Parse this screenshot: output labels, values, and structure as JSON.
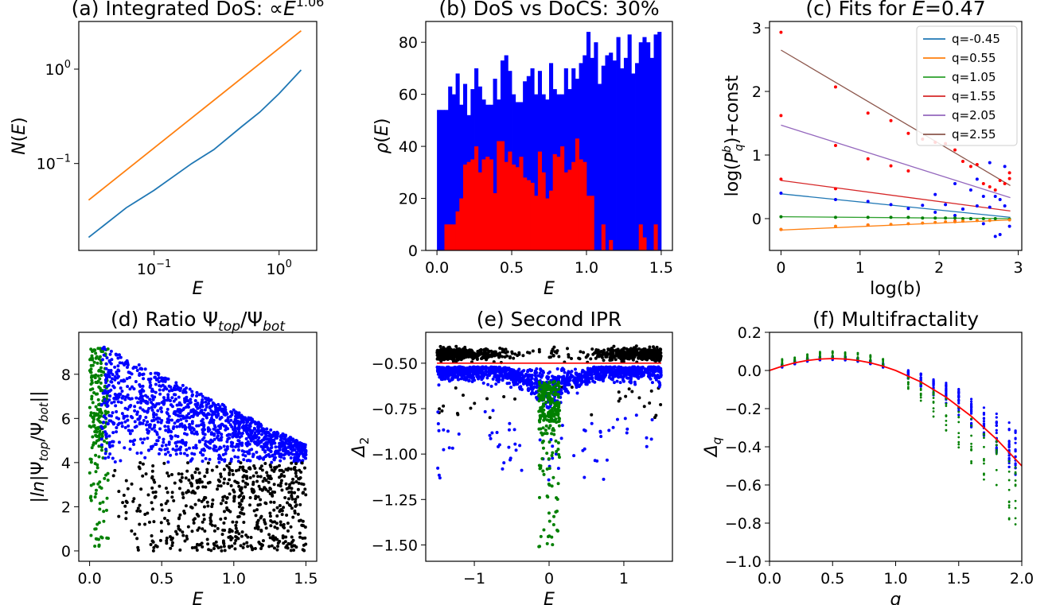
{
  "colors": {
    "blue_line": "#1f77b4",
    "orange_line": "#ff7f0e",
    "green_line": "#2ca02c",
    "red_line": "#d62728",
    "purple_line": "#9467bd",
    "brown_line": "#8c564b",
    "blue": "#0000ff",
    "red": "#ff0000",
    "green": "#008000",
    "black": "#000000",
    "legend_border": "#cccccc"
  },
  "chart_data": [
    {
      "id": "a",
      "type": "line",
      "title": "(a) Integrated DoS:",
      "title_extra": {
        "prefix": "∝",
        "base": "E",
        "exponent": "1.06"
      },
      "xlabel": "E",
      "ylabel": "N(E)",
      "xscale": "log",
      "yscale": "log",
      "xlim": [
        0.025,
        2.0
      ],
      "ylim": [
        0.012,
        3.2
      ],
      "xticks": [
        {
          "v": 0.1,
          "b": "10",
          "e": "−1"
        },
        {
          "v": 1,
          "b": "10",
          "e": "0"
        }
      ],
      "yticks": [
        {
          "v": 0.1,
          "b": "10",
          "e": "−1"
        },
        {
          "v": 1,
          "b": "10",
          "e": "0"
        }
      ],
      "series": [
        {
          "color": "orange_line",
          "x": [
            0.03,
            1.5
          ],
          "y": [
            0.041,
            2.55
          ]
        },
        {
          "color": "blue_line",
          "x": [
            0.03,
            0.06,
            0.1,
            0.2,
            0.3,
            0.5,
            0.7,
            1.0,
            1.5
          ],
          "y": [
            0.0165,
            0.034,
            0.052,
            0.1,
            0.14,
            0.245,
            0.35,
            0.55,
            0.98
          ]
        }
      ]
    },
    {
      "id": "b",
      "type": "bar",
      "title": "(b) DoS vs DoCS: 30%",
      "xlabel": "E",
      "ylabel": "ρ(E)",
      "xlim": [
        -0.075,
        1.575
      ],
      "ylim": [
        0,
        88
      ],
      "xticks": [
        {
          "v": 0,
          "l": "0.0"
        },
        {
          "v": 0.5,
          "l": "0.5"
        },
        {
          "v": 1,
          "l": "1.0"
        },
        {
          "v": 1.5,
          "l": "1.5"
        }
      ],
      "yticks": [
        {
          "v": 0,
          "l": "0"
        },
        {
          "v": 20,
          "l": "20"
        },
        {
          "v": 40,
          "l": "40"
        },
        {
          "v": 60,
          "l": "60"
        },
        {
          "v": 80,
          "l": "80"
        }
      ],
      "bin_start": 0,
      "bin_width": 0.025,
      "series": [
        {
          "color": "blue",
          "values": [
            54,
            54,
            54,
            63,
            60,
            68,
            56,
            64,
            52,
            62,
            70,
            63,
            58,
            56,
            56,
            66,
            58,
            73,
            75,
            69,
            60,
            57,
            57,
            65,
            67,
            70,
            60,
            69,
            60,
            58,
            72,
            62,
            60,
            60,
            70,
            62,
            70,
            66,
            72,
            75,
            84,
            74,
            80,
            64,
            71,
            75,
            76,
            73,
            82,
            70,
            74,
            83,
            68,
            72,
            80,
            82,
            80,
            74,
            83,
            84
          ]
        },
        {
          "color": "red",
          "values": [
            0,
            0,
            10,
            10,
            10,
            15,
            20,
            33,
            34,
            35,
            40,
            30,
            35,
            36,
            35,
            22,
            42,
            42,
            34,
            38,
            33,
            32,
            36,
            28,
            27,
            26,
            21,
            38,
            30,
            20,
            23,
            37,
            36,
            40,
            30,
            31,
            34,
            43,
            35,
            34,
            21,
            21,
            0,
            0,
            10,
            0,
            4,
            0,
            0,
            0,
            0,
            0,
            0,
            0,
            10,
            5,
            0,
            0,
            10,
            0
          ]
        }
      ]
    },
    {
      "id": "c",
      "type": "scatter",
      "title": "(c) Fits for",
      "title_extra": {
        "var": "E",
        "rest": "=0.47"
      },
      "xlabel": "log(b)",
      "ylabel": "log(P_q^b)+const",
      "xlim": [
        -0.145,
        3.045
      ],
      "ylim": [
        -0.5,
        3.1
      ],
      "xticks": [
        {
          "v": 0,
          "l": "0"
        },
        {
          "v": 1,
          "l": "1"
        },
        {
          "v": 2,
          "l": "2"
        },
        {
          "v": 3,
          "l": "3"
        }
      ],
      "yticks": [
        {
          "v": 0,
          "l": "0"
        },
        {
          "v": 1,
          "l": "1"
        },
        {
          "v": 2,
          "l": "2"
        },
        {
          "v": 3,
          "l": "3"
        }
      ],
      "legend_position": "top-right",
      "fits": [
        {
          "name": "q=-0.45",
          "color": "blue_line",
          "x": [
            0,
            2.9
          ],
          "y": [
            0.39,
            0.02
          ]
        },
        {
          "name": "q=0.55",
          "color": "orange_line",
          "x": [
            0,
            2.9
          ],
          "y": [
            -0.18,
            -0.02
          ]
        },
        {
          "name": "q=1.05",
          "color": "green_line",
          "x": [
            0,
            2.9
          ],
          "y": [
            0.03,
            0.0
          ]
        },
        {
          "name": "q=1.55",
          "color": "red_line",
          "x": [
            0,
            2.9
          ],
          "y": [
            0.6,
            0.12
          ]
        },
        {
          "name": "q=2.05",
          "color": "purple_line",
          "x": [
            0,
            2.9
          ],
          "y": [
            1.47,
            0.33
          ]
        },
        {
          "name": "q=2.55",
          "color": "brown_line",
          "x": [
            0,
            2.9
          ],
          "y": [
            2.65,
            0.52
          ]
        }
      ],
      "points": {
        "red": [
          [
            0,
            2.93
          ],
          [
            0,
            1.62
          ],
          [
            0,
            0.62
          ],
          [
            0.69,
            2.07
          ],
          [
            0.69,
            1.15
          ],
          [
            0.69,
            0.47
          ],
          [
            1.1,
            1.66
          ],
          [
            1.1,
            0.94
          ],
          [
            1.39,
            1.54
          ],
          [
            1.39,
            0.83
          ],
          [
            1.61,
            1.34
          ],
          [
            1.61,
            0.75
          ],
          [
            1.79,
            1.25
          ],
          [
            1.95,
            1.2
          ],
          [
            2.08,
            1.18
          ],
          [
            2.2,
            1.08
          ],
          [
            2.3,
            0.9
          ],
          [
            2.4,
            0.82
          ],
          [
            2.48,
            0.85
          ],
          [
            2.56,
            0.55
          ],
          [
            2.64,
            0.5
          ],
          [
            2.71,
            0.45
          ],
          [
            2.77,
            0.6
          ],
          [
            2.83,
            0.55
          ],
          [
            2.89,
            0.72
          ],
          [
            2.89,
            0.63
          ],
          [
            0,
            -0.17
          ],
          [
            1.1,
            -0.1
          ],
          [
            2.2,
            -0.04
          ]
        ],
        "blue": [
          [
            0,
            0.4
          ],
          [
            0.69,
            0.3
          ],
          [
            1.1,
            0.27
          ],
          [
            1.39,
            0.22
          ],
          [
            1.61,
            0.16
          ],
          [
            1.79,
            0.21
          ],
          [
            1.95,
            0.1
          ],
          [
            2.08,
            0.22
          ],
          [
            2.2,
            0.05
          ],
          [
            2.3,
            0.15
          ],
          [
            2.4,
            0.0
          ],
          [
            2.48,
            0.2
          ],
          [
            2.56,
            -0.08
          ],
          [
            2.64,
            0.18
          ],
          [
            2.71,
            -0.28
          ],
          [
            2.77,
            0.3
          ],
          [
            2.83,
            0.2
          ],
          [
            2.89,
            -0.12
          ],
          [
            1.95,
            0.38
          ],
          [
            2.2,
            0.55
          ],
          [
            2.4,
            0.45
          ],
          [
            2.56,
            0.35
          ],
          [
            2.71,
            0.35
          ],
          [
            2.83,
            0.82
          ],
          [
            2.64,
            0.88
          ],
          [
            2.48,
            0.62
          ],
          [
            2.3,
            0.15
          ],
          [
            2.77,
            -0.25
          ]
        ],
        "green": [
          [
            0,
            0.03
          ],
          [
            0.69,
            0.02
          ],
          [
            1.1,
            0.02
          ],
          [
            1.39,
            0.02
          ],
          [
            1.61,
            0.02
          ],
          [
            1.79,
            0.01
          ],
          [
            1.95,
            0.01
          ],
          [
            2.08,
            0.01
          ],
          [
            2.2,
            0.01
          ],
          [
            2.3,
            0.0
          ],
          [
            2.4,
            0.0
          ],
          [
            2.56,
            0.0
          ],
          [
            2.71,
            0.0
          ],
          [
            2.89,
            -0.01
          ]
        ],
        "orange": [
          [
            0,
            -0.17
          ],
          [
            0.69,
            -0.12
          ],
          [
            1.1,
            -0.1
          ],
          [
            1.39,
            -0.09
          ],
          [
            1.61,
            -0.08
          ],
          [
            1.79,
            -0.07
          ],
          [
            1.95,
            -0.06
          ],
          [
            2.08,
            -0.05
          ],
          [
            2.2,
            -0.05
          ],
          [
            2.3,
            -0.04
          ],
          [
            2.48,
            -0.03
          ],
          [
            2.64,
            -0.03
          ],
          [
            2.89,
            -0.02
          ]
        ]
      }
    },
    {
      "id": "d",
      "type": "scatter",
      "title": "(d) Ratio",
      "title_extra": {
        "sym": "Ψ",
        "sub1": "top",
        "slash": "/",
        "sub2": "bot"
      },
      "xlabel": "E",
      "ylabel": "|ln|Ψ_top/Ψ_bot||",
      "xlim": [
        -0.075,
        1.575
      ],
      "ylim": [
        -0.47,
        9.9
      ],
      "xticks": [
        {
          "v": 0,
          "l": "0.0"
        },
        {
          "v": 0.5,
          "l": "0.5"
        },
        {
          "v": 1,
          "l": "1.0"
        },
        {
          "v": 1.5,
          "l": "1.5"
        }
      ],
      "yticks": [
        {
          "v": 0,
          "l": "0"
        },
        {
          "v": 2,
          "l": "2"
        },
        {
          "v": 4,
          "l": "4"
        },
        {
          "v": 6,
          "l": "6"
        },
        {
          "v": 8,
          "l": "8"
        }
      ],
      "clouds": [
        {
          "color": "green",
          "count": 220,
          "x_range": [
            0.0,
            0.13
          ],
          "y_range": [
            0.2,
            9.4
          ]
        },
        {
          "color": "blue",
          "count": 1300,
          "x_range": [
            0.08,
            1.5
          ],
          "y_lower": 4.0,
          "y_upper": [
            9.3,
            4.8
          ],
          "seed": 11
        },
        {
          "color": "black",
          "count": 600,
          "x_range": [
            0.15,
            1.5
          ],
          "y_range": [
            0.0,
            4.0
          ],
          "seed": 23
        }
      ]
    },
    {
      "id": "e",
      "type": "scatter",
      "title": "(e) Second IPR",
      "xlabel": "E",
      "ylabel": "Δ₂",
      "xlim": [
        -1.65,
        1.65
      ],
      "ylim": [
        -1.59,
        -0.33
      ],
      "xticks": [
        {
          "v": -1,
          "l": "−1"
        },
        {
          "v": 0,
          "l": "0"
        },
        {
          "v": 1,
          "l": "1"
        }
      ],
      "yticks": [
        {
          "v": -0.5,
          "l": "−0.50"
        },
        {
          "v": -0.75,
          "l": "−0.75"
        },
        {
          "v": -1.0,
          "l": "−1.00"
        },
        {
          "v": -1.25,
          "l": "−1.25"
        },
        {
          "v": -1.5,
          "l": "−1.50"
        }
      ],
      "hline": {
        "color": "red",
        "y": -0.5,
        "x_range": [
          -1.5,
          1.5
        ]
      },
      "clouds": [
        {
          "color": "black",
          "count": 900,
          "x_range": [
            -1.5,
            1.5
          ],
          "y_center": -0.45,
          "seed": 31
        },
        {
          "color": "blue",
          "count": 1400,
          "x_range": [
            -1.5,
            1.5
          ],
          "y_center": -0.58,
          "seed": 37
        },
        {
          "color": "green",
          "count": 260,
          "x_range": [
            -0.15,
            0.15
          ],
          "y_range": [
            -1.52,
            -0.6
          ],
          "seed": 41
        }
      ]
    },
    {
      "id": "f",
      "type": "scatter",
      "title": "(f) Multifractality",
      "xlabel": "q",
      "ylabel": "Δq",
      "xlim": [
        0,
        2
      ],
      "ylim": [
        -1.0,
        0.2
      ],
      "xticks": [
        {
          "v": 0,
          "l": "0.0"
        },
        {
          "v": 0.5,
          "l": "0.5"
        },
        {
          "v": 1,
          "l": "1.0"
        },
        {
          "v": 1.5,
          "l": "1.5"
        },
        {
          "v": 2,
          "l": "2.0"
        }
      ],
      "yticks": [
        {
          "v": 0.2,
          "l": "0.2"
        },
        {
          "v": 0,
          "l": "0.0"
        },
        {
          "v": -0.2,
          "l": "−0.2"
        },
        {
          "v": -0.4,
          "l": "−0.4"
        },
        {
          "v": -0.6,
          "l": "−0.6"
        },
        {
          "v": -0.8,
          "l": "−0.8"
        },
        {
          "v": -1.0,
          "l": "−1.0"
        }
      ],
      "curve": {
        "color": "red",
        "formula": "q*(1-q)/4",
        "x": [
          0.0,
          0.1,
          0.2,
          0.3,
          0.4,
          0.5,
          0.6,
          0.7,
          0.8,
          0.9,
          1.0,
          1.2,
          1.4,
          1.6,
          1.8,
          2.0
        ],
        "y": [
          0.0,
          0.0225,
          0.04,
          0.0525,
          0.06,
          0.0625,
          0.06,
          0.0525,
          0.04,
          0.0225,
          0.0,
          -0.06,
          -0.14,
          -0.24,
          -0.36,
          -0.5
        ]
      },
      "q_values": [
        0.1,
        0.2,
        0.3,
        0.4,
        0.5,
        0.6,
        0.7,
        0.8,
        0.9,
        1.1,
        1.2,
        1.3,
        1.4,
        1.5,
        1.6,
        1.7,
        1.8,
        1.9,
        1.95
      ],
      "columns": {
        "blue_count": 22,
        "green_count": 10,
        "seed": 53
      }
    }
  ]
}
